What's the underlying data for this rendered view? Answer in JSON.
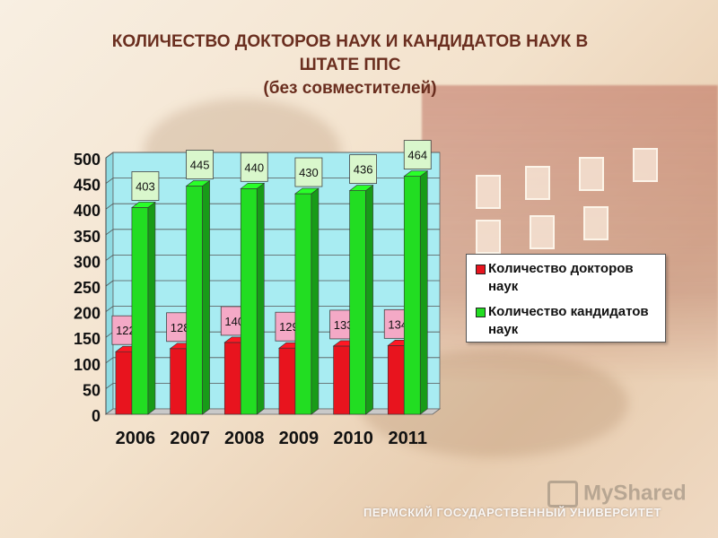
{
  "title_line1": "КОЛИЧЕСТВО ДОКТОРОВ НАУК И КАНДИДАТОВ НАУК В",
  "title_line2": "ШТАТЕ ППС",
  "title_line3": "(без совместителей)",
  "watermark": "MyShared",
  "footer": "ПЕРМСКИЙ ГОСУДАРСТВЕННЫЙ УНИВЕРСИТЕТ",
  "colors": {
    "doctors": "#e8141e",
    "candidates": "#22dd22",
    "doctors_label_bg": "#f4a9c6",
    "candidates_label_bg": "#d9f7cc",
    "plot_bg": "#a8ecf2"
  },
  "chart_data": {
    "type": "bar",
    "categories": [
      "2006",
      "2007",
      "2008",
      "2009",
      "2010",
      "2011"
    ],
    "series": [
      {
        "name": "Количество докторов наук",
        "values": [
          122,
          128,
          140,
          129,
          133,
          134
        ]
      },
      {
        "name": "Количество кандидатов наук",
        "values": [
          403,
          445,
          440,
          430,
          436,
          464
        ]
      }
    ],
    "ylim": [
      0,
      500
    ],
    "yticks": [
      "0",
      "50",
      "100",
      "150",
      "200",
      "250",
      "300",
      "350",
      "400",
      "450",
      "500"
    ],
    "grid": true,
    "legend": "right"
  }
}
